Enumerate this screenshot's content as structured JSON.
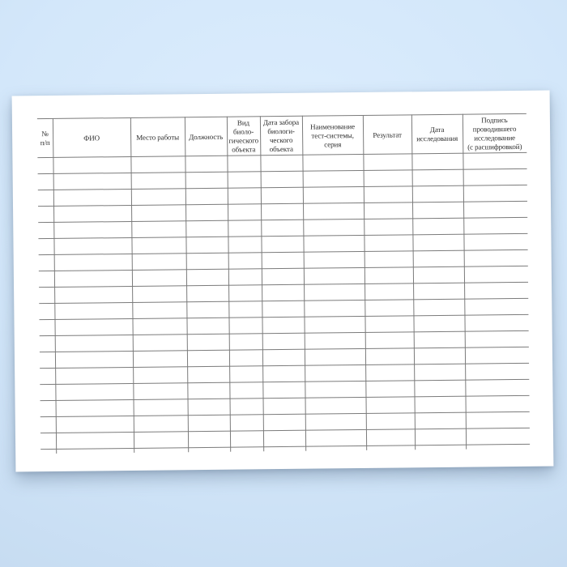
{
  "background": {
    "center_color": "#dcedfd",
    "mid_color": "#d3e7fa",
    "edge_color": "#c3d9ef"
  },
  "paper": {
    "color": "#ffffff"
  },
  "table": {
    "line_color": "#7b7b7b",
    "text_color": "#2f2f2f",
    "body_row_count": 18,
    "columns": [
      {
        "id": "row-number",
        "label": "№\nп/п"
      },
      {
        "id": "full-name",
        "label": "ФИО"
      },
      {
        "id": "workplace",
        "label": "Место работы"
      },
      {
        "id": "position",
        "label": "Должность"
      },
      {
        "id": "bio-object-type",
        "label": "Вид\nбиоло-\nгического\nобъекта"
      },
      {
        "id": "sampling-date",
        "label": "Дата забора\nбиологи-\nческого\nобъекта"
      },
      {
        "id": "test-system",
        "label": "Наименование\nтест-системы,\nсерия"
      },
      {
        "id": "result",
        "label": "Результат"
      },
      {
        "id": "research-date",
        "label": "Дата\nисследования"
      },
      {
        "id": "signature",
        "label": "Подпись\nпроводившего\nисследование\n(с расшифровкой)"
      }
    ]
  }
}
